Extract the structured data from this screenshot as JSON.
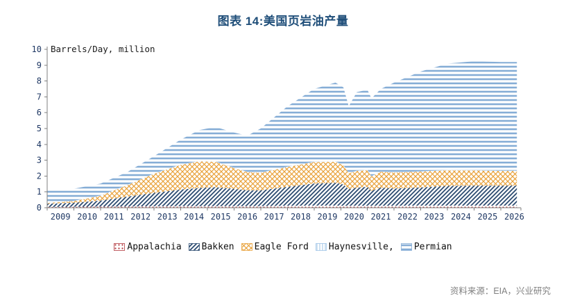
{
  "header": {
    "title": "图表 14:美国页岩油产量"
  },
  "footer": {
    "source": "资料来源：EIA，兴业研究"
  },
  "chart_data": {
    "type": "area",
    "stacked": true,
    "title": "图表 14:美国页岩油产量",
    "ylabel": "Barrels/Day, million",
    "xlabel": "",
    "grid": false,
    "legend_position": "bottom",
    "ylim": [
      0,
      10
    ],
    "yticks": [
      0,
      1,
      2,
      3,
      4,
      5,
      6,
      7,
      8,
      9,
      10
    ],
    "xlim": [
      2009,
      2026.75
    ],
    "xticks": [
      2009,
      2010,
      2011,
      2012,
      2013,
      2014,
      2015,
      2016,
      2017,
      2018,
      2019,
      2020,
      2021,
      2022,
      2023,
      2024,
      2025,
      2026
    ],
    "x": [
      2009,
      2010,
      2011,
      2012,
      2013,
      2014,
      2014.7,
      2015.3,
      2016,
      2016.5,
      2017,
      2018,
      2019,
      2019.8,
      2020.1,
      2020.3,
      2020.6,
      2021,
      2021.15,
      2021.5,
      2022,
      2023,
      2024,
      2025,
      2026,
      2026.6
    ],
    "series": [
      {
        "name": "Appalachia",
        "color": "#b2383e",
        "pattern": "dots",
        "values": [
          0.05,
          0.06,
          0.07,
          0.08,
          0.09,
          0.1,
          0.1,
          0.1,
          0.1,
          0.1,
          0.1,
          0.12,
          0.13,
          0.13,
          0.12,
          0.12,
          0.12,
          0.12,
          0.12,
          0.12,
          0.12,
          0.13,
          0.13,
          0.13,
          0.13,
          0.13
        ]
      },
      {
        "name": "Bakken",
        "color": "#2b4a70",
        "pattern": "diagonal",
        "values": [
          0.2,
          0.26,
          0.38,
          0.62,
          0.85,
          1.05,
          1.15,
          1.2,
          1.1,
          1.0,
          1.0,
          1.2,
          1.4,
          1.45,
          1.35,
          1.05,
          1.15,
          1.2,
          0.95,
          1.15,
          1.1,
          1.15,
          1.25,
          1.27,
          1.27,
          1.27
        ]
      },
      {
        "name": "Eagle Ford",
        "color": "#e9a23b",
        "pattern": "crosshatch",
        "values": [
          0.05,
          0.1,
          0.3,
          0.72,
          1.2,
          1.55,
          1.68,
          1.6,
          1.3,
          1.15,
          1.1,
          1.25,
          1.35,
          1.32,
          1.2,
          1.0,
          1.05,
          1.05,
          0.9,
          1.0,
          1.0,
          1.0,
          0.98,
          0.95,
          0.92,
          0.92
        ]
      },
      {
        "name": "Haynesville,",
        "color": "#9dc3e6",
        "pattern": "vertical",
        "values": [
          0.02,
          0.02,
          0.02,
          0.02,
          0.02,
          0.02,
          0.02,
          0.02,
          0.02,
          0.02,
          0.02,
          0.02,
          0.02,
          0.02,
          0.02,
          0.02,
          0.02,
          0.02,
          0.02,
          0.02,
          0.02,
          0.02,
          0.02,
          0.02,
          0.02,
          0.02
        ]
      },
      {
        "name": "Permian",
        "color": "#85add6",
        "pattern": "horizontal",
        "values": [
          0.78,
          0.76,
          0.75,
          0.81,
          1.09,
          1.58,
          1.95,
          2.18,
          2.23,
          2.28,
          2.78,
          3.81,
          4.6,
          4.98,
          4.91,
          4.21,
          4.96,
          5.06,
          4.91,
          5.21,
          5.66,
          6.3,
          6.72,
          6.88,
          6.86,
          6.86
        ]
      }
    ],
    "axis_color": "#7f7f7f",
    "tick_label_color": "#1f3864",
    "ylabel_color": "#1a1a1a"
  }
}
